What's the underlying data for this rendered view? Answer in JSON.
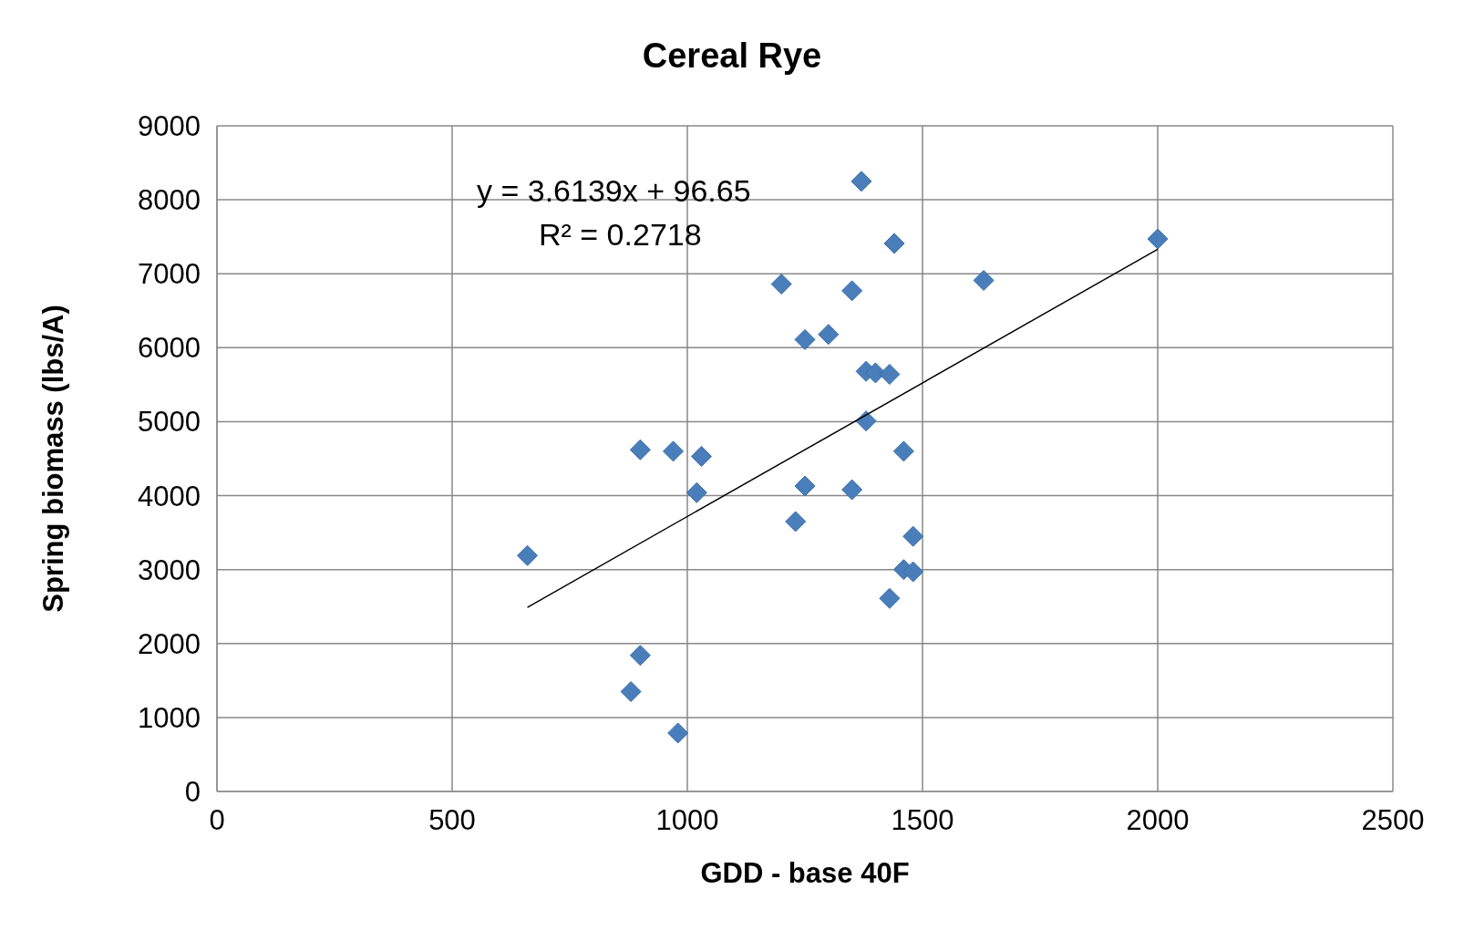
{
  "chart_data": {
    "type": "scatter",
    "title": "Cereal Rye",
    "xlabel": "GDD - base 40F",
    "ylabel": "Spring biomass (lbs/A)",
    "series": [
      {
        "color": "#4a7ebb",
        "marker": "diamond",
        "x": [
          660,
          900,
          970,
          1030,
          1020,
          900,
          880,
          980,
          1200,
          1370,
          1440,
          1630,
          2000,
          1350,
          1250,
          1300,
          1380,
          1400,
          1430,
          1380,
          1460,
          1250,
          1350,
          1230,
          1480,
          1460,
          1480,
          1430
        ],
        "values": [
          3190,
          4620,
          4600,
          4530,
          4040,
          1840,
          1350,
          790,
          6860,
          8250,
          7410,
          6910,
          7470,
          6770,
          6110,
          6180,
          5680,
          5660,
          5640,
          5010,
          4600,
          4130,
          4080,
          3650,
          3450,
          3000,
          2970,
          2610
        ]
      },
      {
        "type": "line",
        "color": "#000000",
        "marker": "none",
        "x": [
          660,
          2000
        ],
        "values": [
          2490,
          7330
        ]
      }
    ],
    "annotations": [
      "y = 3.6139x + 96.65",
      "R² = 0.2718"
    ],
    "xlim": [
      0,
      2500
    ],
    "xticks": [
      0,
      500,
      1000,
      1500,
      2000,
      2500
    ],
    "ylim": [
      0,
      9000
    ],
    "yticks": [
      0,
      1000,
      2000,
      3000,
      4000,
      5000,
      6000,
      7000,
      8000,
      9000
    ],
    "grid": true
  }
}
